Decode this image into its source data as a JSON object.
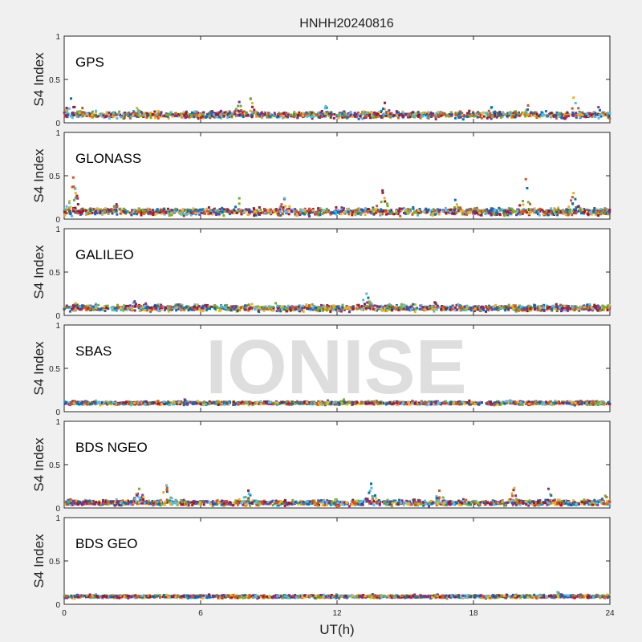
{
  "figure": {
    "title": "HNHH20240816",
    "watermark": "IONISE",
    "xlabel": "UT(h)",
    "ylabel": "S4 Index"
  },
  "chart_data": {
    "type": "scatter",
    "title": "HNHH20240816",
    "xlabel": "UT(h)",
    "ylabel": "S4 Index",
    "xlim": [
      0,
      24
    ],
    "ylim": [
      0,
      1
    ],
    "x_ticks": [
      "0",
      "6",
      "12",
      "18",
      "24"
    ],
    "y_ticks": [
      "0",
      "0.5",
      "1"
    ],
    "grid": false,
    "series_colors": [
      "#0072BD",
      "#D95319",
      "#EDB120",
      "#7E2F8E",
      "#77AC30",
      "#4DBEEE",
      "#A2142F"
    ],
    "panels": [
      {
        "label": "GPS",
        "baseline": 0.09,
        "spread": 0.035,
        "bursts": [
          [
            0.3,
            0.28
          ],
          [
            0.8,
            0.17
          ],
          [
            3.2,
            0.17
          ],
          [
            7.7,
            0.24
          ],
          [
            8.2,
            0.28
          ],
          [
            11.5,
            0.19
          ],
          [
            14.1,
            0.23
          ],
          [
            18.8,
            0.18
          ],
          [
            20.4,
            0.2
          ],
          [
            22.4,
            0.29
          ],
          [
            23.5,
            0.18
          ]
        ]
      },
      {
        "label": "GLONASS",
        "baseline": 0.085,
        "spread": 0.04,
        "bursts": [
          [
            0.4,
            0.48
          ],
          [
            0.5,
            0.3
          ],
          [
            2.3,
            0.17
          ],
          [
            7.7,
            0.24
          ],
          [
            9.7,
            0.24
          ],
          [
            14.0,
            0.33
          ],
          [
            17.2,
            0.22
          ],
          [
            20.3,
            0.46
          ],
          [
            22.4,
            0.3
          ]
        ]
      },
      {
        "label": "GALILEO",
        "baseline": 0.085,
        "spread": 0.035,
        "bursts": [
          [
            0.5,
            0.14
          ],
          [
            3.1,
            0.16
          ],
          [
            9.3,
            0.14
          ],
          [
            13.3,
            0.25
          ],
          [
            16.3,
            0.15
          ],
          [
            23.0,
            0.12
          ]
        ]
      },
      {
        "label": "SBAS",
        "baseline": 0.1,
        "spread": 0.02,
        "bursts": [
          [
            5.3,
            0.14
          ],
          [
            12.3,
            0.14
          ],
          [
            19.6,
            0.13
          ]
        ]
      },
      {
        "label": "BDS NGEO",
        "baseline": 0.06,
        "spread": 0.03,
        "bursts": [
          [
            3.3,
            0.22
          ],
          [
            4.5,
            0.26
          ],
          [
            8.1,
            0.2
          ],
          [
            13.5,
            0.28
          ],
          [
            16.5,
            0.2
          ],
          [
            19.8,
            0.23
          ],
          [
            21.3,
            0.22
          ],
          [
            23.8,
            0.14
          ]
        ]
      },
      {
        "label": "BDS GEO",
        "baseline": 0.09,
        "spread": 0.018,
        "bursts": [
          [
            21.7,
            0.14
          ]
        ]
      }
    ]
  }
}
